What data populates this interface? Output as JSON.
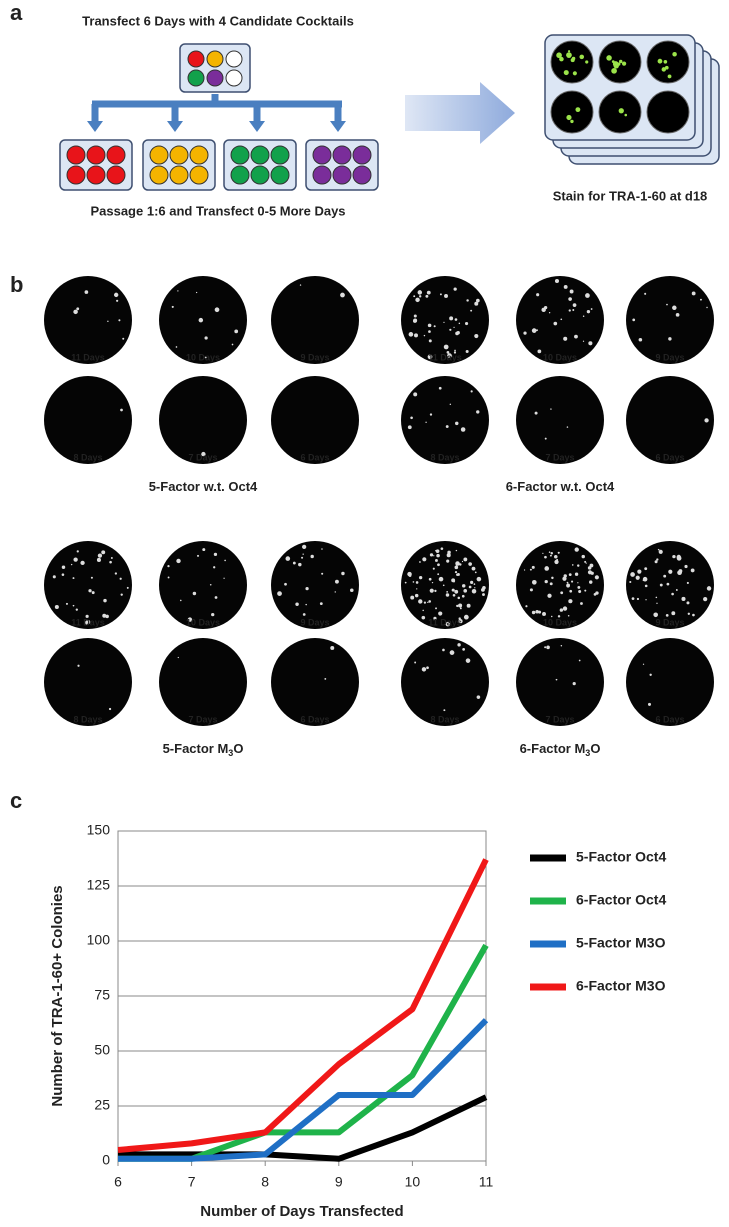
{
  "panel_a": {
    "letter": "a",
    "top_label": "Transfect 6 Days with 4 Candidate Cocktails",
    "bottom_label": "Passage 1:6 and Transfect 0-5 More Days",
    "right_label": "Stain for TRA-1-60 at d18"
  },
  "panel_b": {
    "letter": "b",
    "groups": [
      {
        "label": {
          "pre": "5-Factor w.t. Oct4"
        },
        "wells": [
          "11 Days",
          "10 Days",
          "9 Days",
          "8 Days",
          "7 Days",
          "6 Days"
        ]
      },
      {
        "label": {
          "pre": "6-Factor w.t. Oct4"
        },
        "wells": [
          "11 Days",
          "10 Days",
          "9 Days",
          "8 Days",
          "7 Days",
          "6 Days"
        ]
      },
      {
        "label": {
          "pre": "5-Factor M",
          "sub": "3",
          "post": "O"
        },
        "wells": [
          "11 Days",
          "10 Days",
          "9 Days",
          "8 Days",
          "7 Days",
          "6 Days"
        ]
      },
      {
        "label": {
          "pre": "6-Factor M",
          "sub": "3",
          "post": "O"
        },
        "wells": [
          "11 Days",
          "10 Days",
          "9 Days",
          "8 Days",
          "7 Days",
          "6 Days"
        ]
      }
    ]
  },
  "panel_c": {
    "letter": "c"
  },
  "chart_data": {
    "type": "line",
    "x_label": "Number of Days Transfected",
    "y_label": "Number of TRA-1-60+ Colonies",
    "x": [
      6,
      7,
      8,
      9,
      10,
      11
    ],
    "series": [
      {
        "name": "5-Factor Oct4",
        "color": "#000000",
        "values": [
          3,
          3,
          3,
          1,
          13,
          29
        ]
      },
      {
        "name": "6-Factor Oct4",
        "color": "#1fb34a",
        "values": [
          1,
          1,
          13,
          13,
          39,
          98
        ]
      },
      {
        "name": "5-Factor M3O",
        "color": "#1f6fc5",
        "values": [
          1,
          1,
          3,
          30,
          30,
          64
        ]
      },
      {
        "name": "6-Factor M3O",
        "color": "#f01818",
        "values": [
          5,
          8,
          13,
          44,
          69,
          137
        ]
      }
    ],
    "xlim": [
      6,
      11
    ],
    "ylim": [
      0,
      150
    ],
    "xticks": [
      6,
      7,
      8,
      9,
      10,
      11
    ],
    "yticks": [
      0,
      25,
      50,
      75,
      100,
      125,
      150
    ],
    "grid": true,
    "legend": "right"
  }
}
